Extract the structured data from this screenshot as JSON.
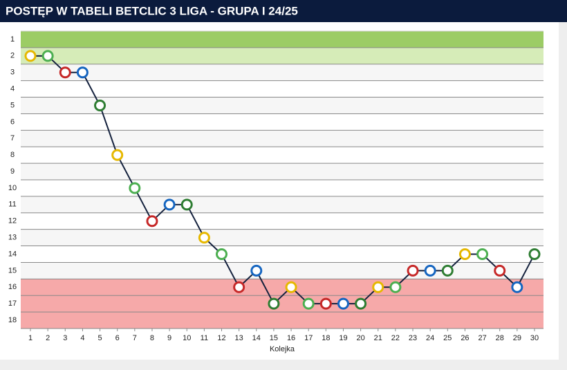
{
  "chart_data": {
    "type": "line",
    "title": "POSTĘP W TABELI BETCLIC 3 LIGA - GRUPA I 24/25",
    "x_label": "Kolejka",
    "x": [
      1,
      2,
      3,
      4,
      5,
      6,
      7,
      8,
      9,
      10,
      11,
      12,
      13,
      14,
      15,
      16,
      17,
      18,
      19,
      20,
      21,
      22,
      23,
      24,
      25,
      26,
      27,
      28,
      29,
      30
    ],
    "series": [
      {
        "color": "#14213d",
        "values": [
          2,
          2,
          3,
          3,
          5,
          8,
          10,
          12,
          11,
          11,
          13,
          14,
          16,
          15,
          17,
          16,
          17,
          17,
          17,
          17,
          16,
          16,
          15,
          15,
          15,
          14,
          14,
          15,
          16,
          14
        ]
      }
    ],
    "xlim": [
      1,
      30
    ],
    "xticks": [
      1,
      2,
      3,
      4,
      5,
      6,
      7,
      8,
      9,
      10,
      11,
      12,
      13,
      14,
      15,
      16,
      17,
      18,
      19,
      20,
      21,
      22,
      23,
      24,
      25,
      26,
      27,
      28,
      29,
      30
    ],
    "ylim": [
      0.5,
      18.5
    ],
    "y_inverted": true,
    "yticks": [
      1,
      2,
      3,
      4,
      5,
      6,
      7,
      8,
      9,
      10,
      11,
      12,
      13,
      14,
      15,
      16,
      17,
      18
    ],
    "zones": [
      {
        "from": 1,
        "to": 1,
        "color": "#9ccc65"
      },
      {
        "from": 2,
        "to": 2,
        "color": "#d6ecb8"
      },
      {
        "from": 16,
        "to": 18,
        "color": "#f6a9a9"
      }
    ],
    "grid": true
  }
}
